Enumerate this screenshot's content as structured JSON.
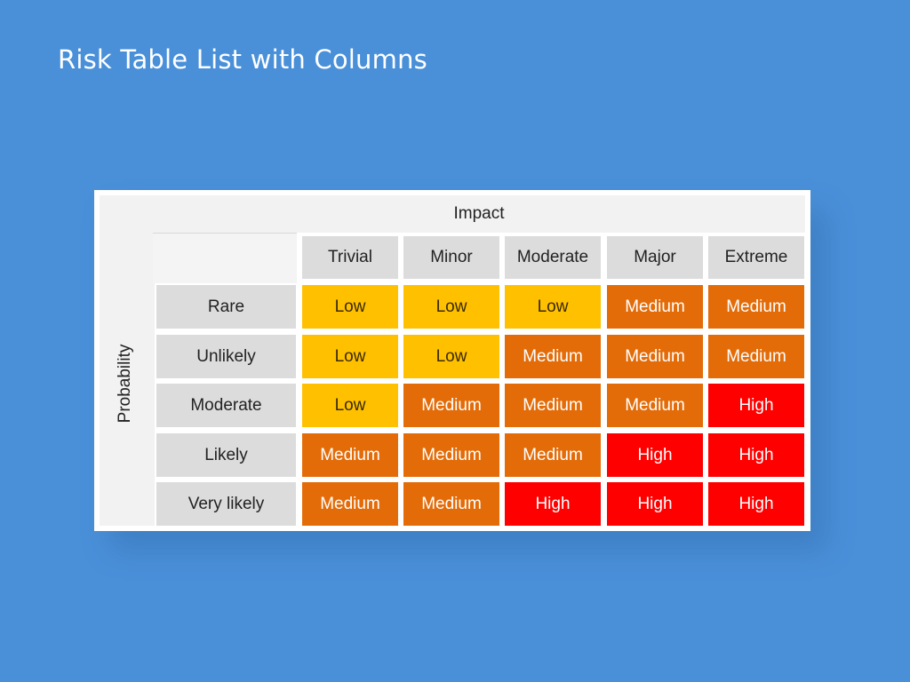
{
  "title": "Risk Table List with Columns",
  "matrix": {
    "impact_label": "Impact",
    "probability_label": "Probability",
    "columns": [
      "Trivial",
      "Minor",
      "Moderate",
      "Major",
      "Extreme"
    ],
    "rows": [
      {
        "label": "Rare",
        "cells": [
          "Low",
          "Low",
          "Low",
          "Medium",
          "Medium"
        ]
      },
      {
        "label": "Unlikely",
        "cells": [
          "Low",
          "Low",
          "Medium",
          "Medium",
          "Medium"
        ]
      },
      {
        "label": "Moderate",
        "cells": [
          "Low",
          "Medium",
          "Medium",
          "Medium",
          "High"
        ]
      },
      {
        "label": "Likely",
        "cells": [
          "Medium",
          "Medium",
          "Medium",
          "High",
          "High"
        ]
      },
      {
        "label": "Very likely",
        "cells": [
          "Medium",
          "Medium",
          "High",
          "High",
          "High"
        ]
      }
    ]
  },
  "colors": {
    "background": "#4a90d9",
    "low": "#ffc000",
    "medium": "#e36c09",
    "high": "#ff0000",
    "header_gray": "#dcdcdc"
  }
}
